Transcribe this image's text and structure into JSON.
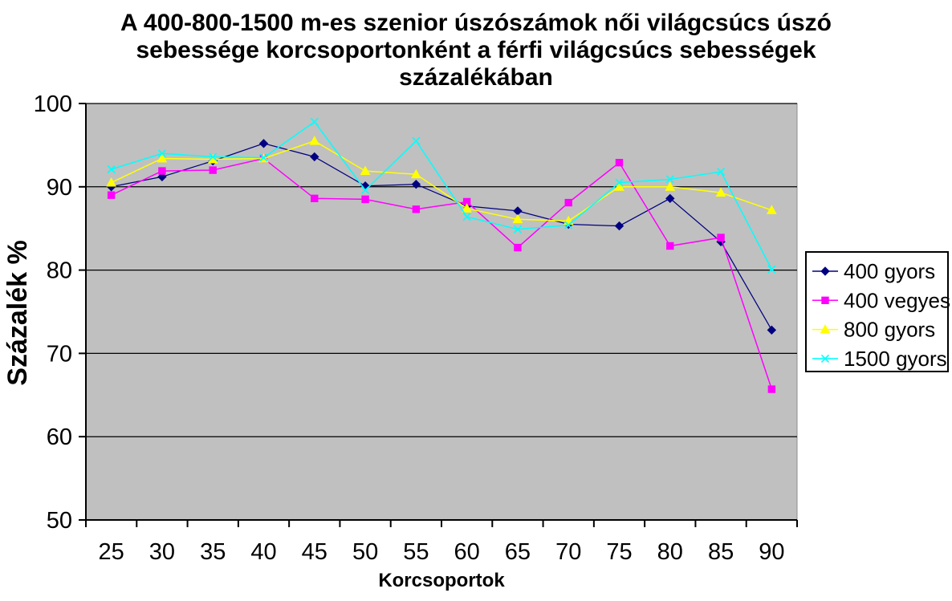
{
  "title_lines": [
    "A 400-800-1500 m-es szenior úszószámok női világcsúcs úszó",
    "sebessége korcsoportonként a férfi világcsúcs sebességek",
    "százalékában"
  ],
  "chart_data": {
    "type": "line",
    "title": "A 400-800-1500 m-es szenior úszószámok női világcsúcs úszó sebessége korcsoportonként a férfi világcsúcs sebességek százalékában",
    "xlabel": "Korcsoportok",
    "ylabel": "Százalék %",
    "categories": [
      "25",
      "30",
      "35",
      "40",
      "45",
      "50",
      "55",
      "60",
      "65",
      "70",
      "75",
      "80",
      "85",
      "90"
    ],
    "y_ticks": [
      100,
      90,
      80,
      70,
      60,
      50
    ],
    "ylim": [
      50,
      100
    ],
    "grid": true,
    "plot_bg": "#c0c0c0",
    "legend_position": "right",
    "series": [
      {
        "name": "400 gyors",
        "color": "#000080",
        "marker": "diamond",
        "values": [
          90.0,
          91.2,
          93.1,
          95.2,
          93.6,
          90.1,
          90.3,
          87.7,
          87.1,
          85.5,
          85.3,
          88.6,
          83.4,
          72.8
        ]
      },
      {
        "name": "400 vegyes",
        "color": "#ff00ff",
        "marker": "square",
        "values": [
          89.0,
          91.9,
          92.0,
          93.4,
          88.6,
          88.5,
          87.3,
          88.2,
          82.7,
          88.1,
          92.9,
          82.9,
          83.9,
          65.7
        ]
      },
      {
        "name": "800 gyors",
        "color": "#ffff00",
        "marker": "triangle",
        "values": [
          90.5,
          93.4,
          93.3,
          93.4,
          95.5,
          91.9,
          91.5,
          87.4,
          86.1,
          85.9,
          90.0,
          90.0,
          89.3,
          87.2
        ]
      },
      {
        "name": "1500 gyors",
        "color": "#00ffff",
        "marker": "x",
        "values": [
          92.1,
          94.0,
          93.6,
          93.5,
          97.8,
          89.6,
          95.5,
          86.4,
          84.9,
          85.4,
          90.5,
          90.9,
          91.8,
          80.1
        ]
      }
    ]
  }
}
